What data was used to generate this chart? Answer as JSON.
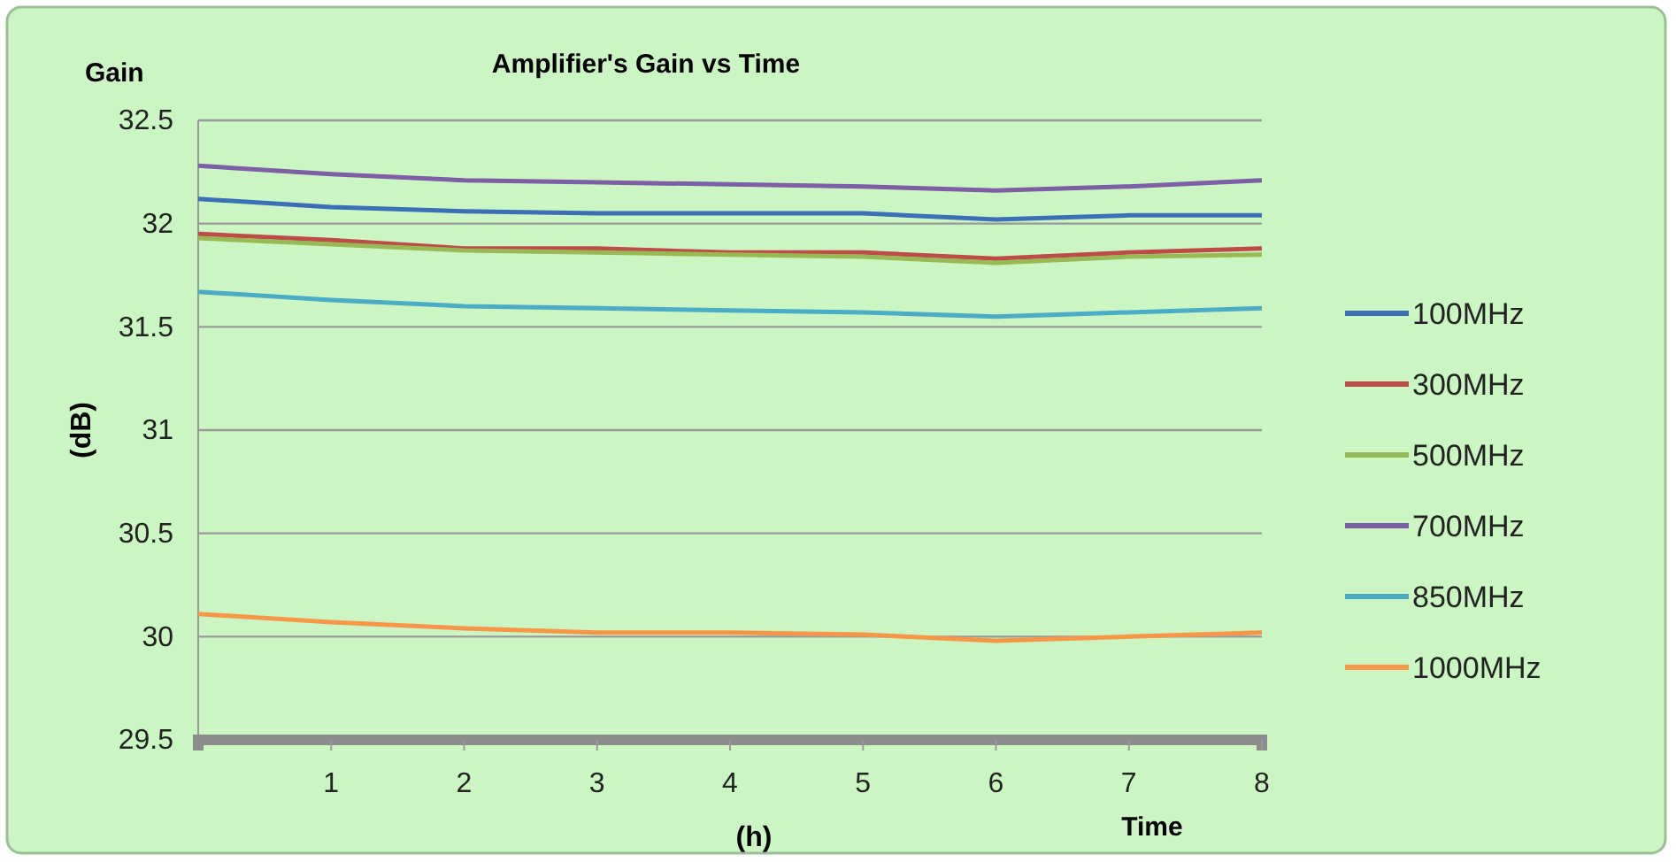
{
  "chart_data": {
    "type": "line",
    "title": "Amplifier's Gain vs Time",
    "xlabel": "(h)",
    "ylabel": "(dB)",
    "annotations": [
      "Gain",
      "Time"
    ],
    "x": [
      0,
      1,
      2,
      3,
      4,
      5,
      6,
      7,
      8
    ],
    "xlim": [
      0,
      8
    ],
    "xticks": [
      1,
      2,
      3,
      4,
      5,
      6,
      7,
      8
    ],
    "ylim": [
      29.5,
      32.5
    ],
    "yticks": [
      29.5,
      30,
      30.5,
      31,
      31.5,
      32,
      32.5
    ],
    "grid": "y",
    "legend": "right",
    "marker": "none",
    "line_style": "solid",
    "series": [
      {
        "name": "100MHz",
        "color": "#3a6fb8",
        "values": [
          32.12,
          32.08,
          32.06,
          32.05,
          32.05,
          32.05,
          32.02,
          32.04,
          32.04
        ]
      },
      {
        "name": "300MHz",
        "color": "#be4b48",
        "values": [
          31.95,
          31.92,
          31.88,
          31.88,
          31.86,
          31.86,
          31.83,
          31.86,
          31.88
        ]
      },
      {
        "name": "500MHz",
        "color": "#98b954",
        "values": [
          31.93,
          31.9,
          31.87,
          31.86,
          31.85,
          31.84,
          31.81,
          31.84,
          31.85
        ]
      },
      {
        "name": "700MHz",
        "color": "#7e5ea5",
        "values": [
          32.28,
          32.24,
          32.21,
          32.2,
          32.19,
          32.18,
          32.16,
          32.18,
          32.21
        ]
      },
      {
        "name": "850MHz",
        "color": "#4bacc6",
        "values": [
          31.67,
          31.63,
          31.6,
          31.59,
          31.58,
          31.57,
          31.55,
          31.57,
          31.59
        ]
      },
      {
        "name": "1000MHz",
        "color": "#f79646",
        "values": [
          30.11,
          30.07,
          30.04,
          30.02,
          30.02,
          30.01,
          29.98,
          30.0,
          30.02
        ]
      }
    ]
  }
}
